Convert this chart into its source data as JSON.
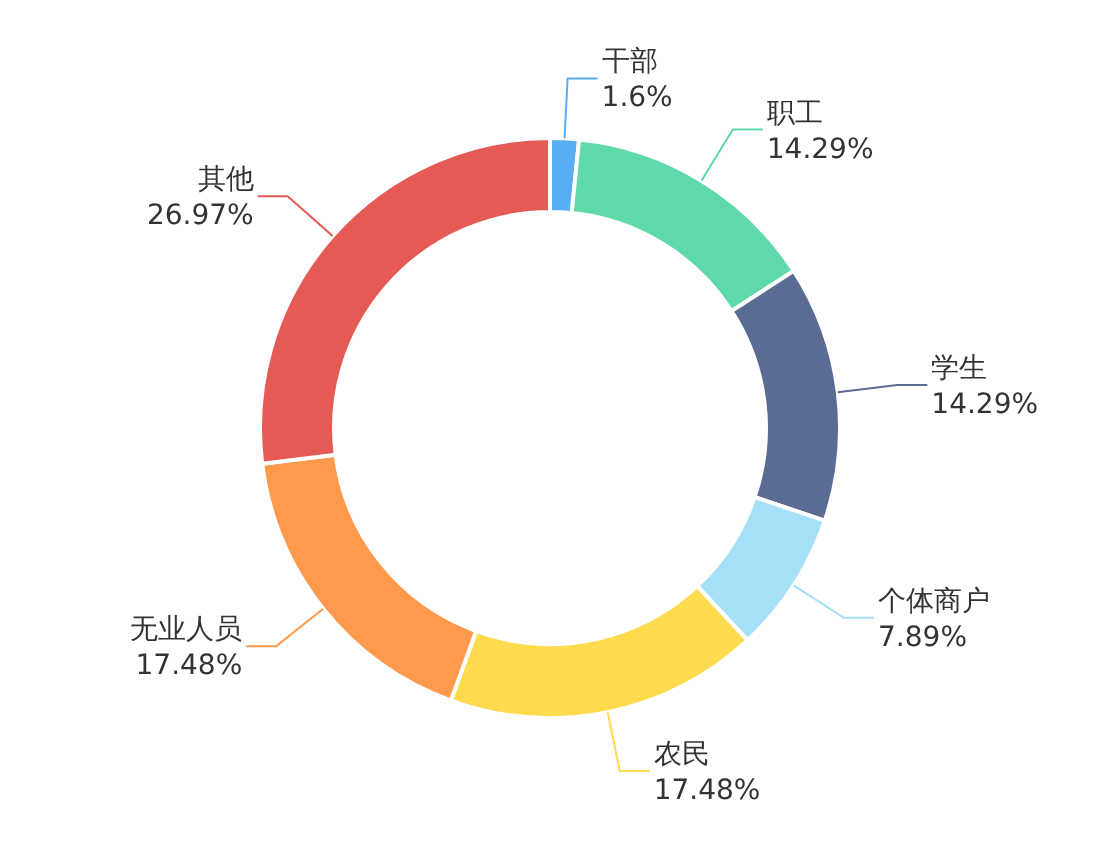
{
  "chart_data": {
    "type": "donut",
    "categories": [
      "干部",
      "职工",
      "学生",
      "个体商户",
      "农民",
      "无业人员",
      "其他"
    ],
    "values": [
      1.6,
      14.29,
      14.29,
      7.89,
      17.48,
      17.48,
      26.97
    ],
    "colors": [
      "#59adf3",
      "#5fd9aa",
      "#5a6b94",
      "#a6dff8",
      "#ffdb4d",
      "#ff9a4d",
      "#e55a55"
    ],
    "value_labels": [
      "1.6%",
      "14.29%",
      "14.29%",
      "7.89%",
      "17.48%",
      "17.48%",
      "26.97%"
    ]
  }
}
